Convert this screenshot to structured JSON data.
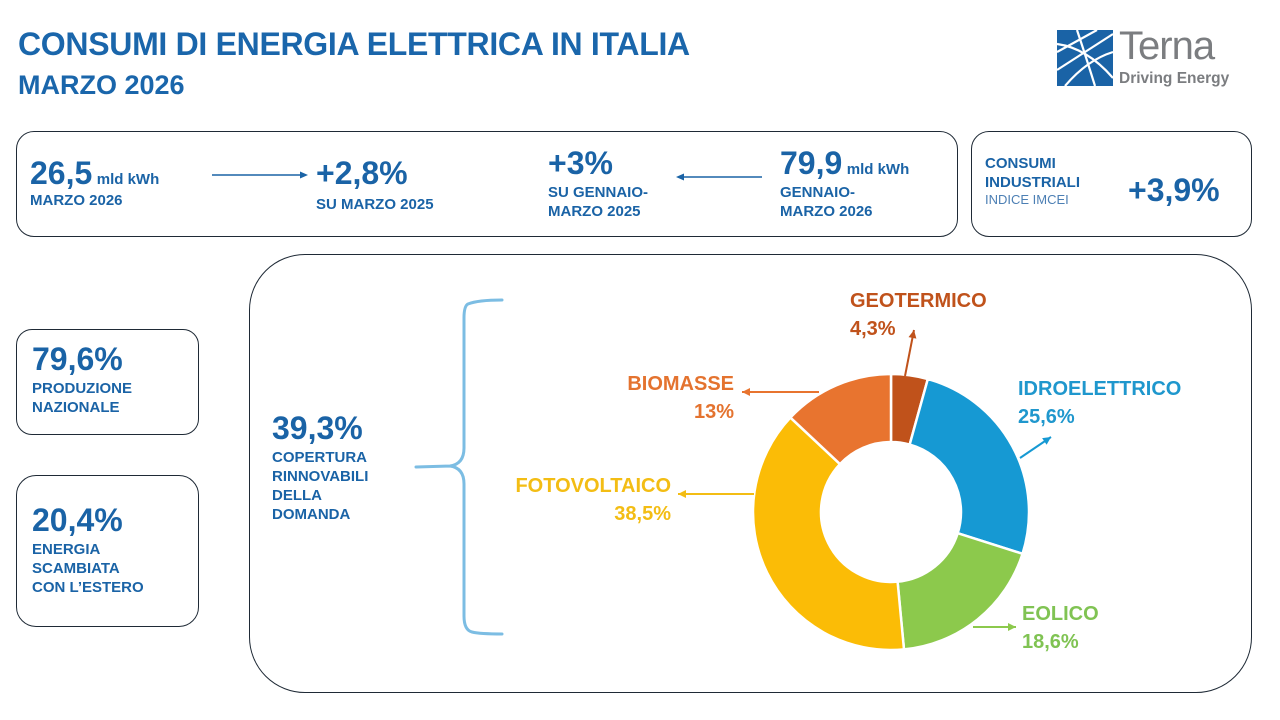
{
  "header": {
    "title": "CONSUMI DI ENERGIA ELETTRICA IN ITALIA",
    "subtitle": "MARZO 2026"
  },
  "logo": {
    "name": "Terna",
    "tagline": "Driving Energy",
    "icon": "grid-network-icon"
  },
  "summary": {
    "monthly": {
      "value": "26,5",
      "unit": "mld kWh",
      "label": "MARZO 2026"
    },
    "monthly_change": {
      "value": "+2,8%",
      "label": "SU MARZO 2025"
    },
    "ytd_change": {
      "value": "+3%",
      "label_line1": "SU GENNAIO-",
      "label_line2": "MARZO 2025"
    },
    "ytd": {
      "value": "79,9",
      "unit": "mld kWh",
      "label_line1": "GENNAIO-",
      "label_line2": "MARZO 2026"
    }
  },
  "industrial": {
    "label_line1": "CONSUMI",
    "label_line2": "INDUSTRIALI",
    "sublabel": "INDICE IMCEI",
    "value": "+3,9%"
  },
  "side_stats": [
    {
      "value": "79,6%",
      "lines": [
        "PRODUZIONE",
        "NAZIONALE"
      ]
    },
    {
      "value": "20,4%",
      "lines": [
        "ENERGIA",
        "SCAMBIATA",
        "CON L’ESTERO"
      ]
    }
  ],
  "renewables": {
    "value": "39,3%",
    "lines": [
      "COPERTURA",
      "RINNOVABILI",
      "DELLA",
      "DOMANDA"
    ]
  },
  "chart_data": {
    "type": "pie",
    "variant": "donut",
    "title": "",
    "start": "top",
    "direction": "clockwise",
    "slices": [
      {
        "name": "GEOTERMICO",
        "value": 4.3,
        "label": "4,3%",
        "color": "#c0521b"
      },
      {
        "name": "IDROELETTRICO",
        "value": 25.6,
        "label": "25,6%",
        "color": "#1699d3"
      },
      {
        "name": "EOLICO",
        "value": 18.6,
        "label": "18,6%",
        "color": "#8cc94c"
      },
      {
        "name": "FOTOVOLTAICO",
        "value": 38.5,
        "label": "38,5%",
        "color": "#fbbc06"
      },
      {
        "name": "BIOMASSE",
        "value": 13,
        "label": "13%",
        "color": "#e8742f"
      }
    ],
    "label_colors": {
      "GEOTERMICO": "#c0521b",
      "IDROELETTRICO": "#1f97cd",
      "EOLICO": "#80c353",
      "FOTOVOLTAICO": "#f3bd14",
      "BIOMASSE": "#e4732f"
    }
  }
}
